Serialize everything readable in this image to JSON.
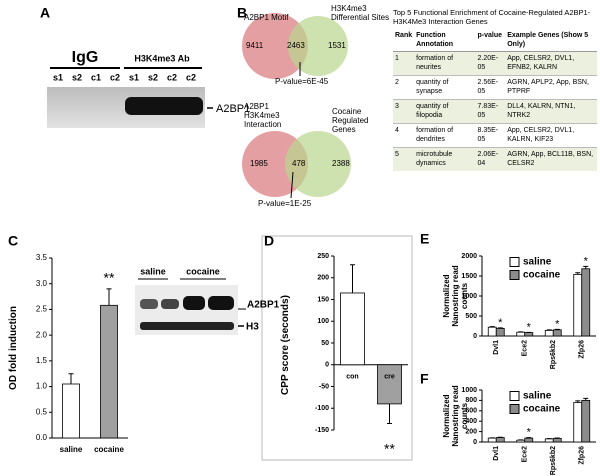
{
  "panel_a": {
    "label": "A",
    "groups": [
      "IgG",
      "H3K4me3 Ab"
    ],
    "lanes": [
      "s1",
      "s2",
      "c1",
      "c2",
      "s1",
      "s2",
      "c2",
      "c2"
    ],
    "band": "A2BP1"
  },
  "panel_b": {
    "label": "B",
    "venn": [
      {
        "left_label": "A2BP1 Motif",
        "right_label": "H3K4me3 Differential Sites",
        "left_only": 9411,
        "overlap": 2463,
        "right_only": 1531,
        "p_value": "P-value=6E-45"
      },
      {
        "left_label": "A2BP1 H3K4me3 Interaction",
        "right_label": "Cocaine Regulated Genes",
        "left_only": 1985,
        "overlap": 478,
        "right_only": 2388,
        "p_value": "P-value=1E-25"
      }
    ],
    "table": {
      "title": "Top 5 Functional Enrichment of Cocaine-Regulated A2BP1-H3K4Me3 Interaction Genes",
      "columns": [
        "Rank",
        "Function Annotation",
        "p-value",
        "Example Genes (Show 5 Only)"
      ],
      "rows": [
        [
          1,
          "formation of neurites",
          "2.20E-05",
          "App, CELSR2, DVL1, EFNB2, KALRN"
        ],
        [
          2,
          "quantity of synapse",
          "2.56E-05",
          "AGRN, APLP2, App, BSN, PTPRF"
        ],
        [
          3,
          "quantity of filopodia",
          "7.83E-05",
          "DLL4, KALRN, NTN1, NTRK2"
        ],
        [
          4,
          "formation of dendrites",
          "8.35E-05",
          "App, CELSR2, DVL1, KALRN, KIF23"
        ],
        [
          5,
          "microtubule dynamics",
          "2.06E-04",
          "AGRN, App, BCL11B, BSN, CELSR2"
        ]
      ]
    }
  },
  "panel_c_blot": {
    "groups": [
      "saline",
      "cocaine"
    ],
    "bands": [
      "A2BP1",
      "H3"
    ]
  },
  "chart_data": [
    {
      "type": "bar",
      "panel": "C",
      "y_label": "OD fold induction",
      "categories": [
        "saline",
        "cocaine"
      ],
      "values": [
        1.05,
        2.58
      ],
      "errors": [
        0.2,
        0.32
      ],
      "colors": [
        "#ffffff",
        "#a0a0a0"
      ],
      "significance": [
        null,
        "**"
      ],
      "ylim": [
        0,
        3.5
      ],
      "yticks": [
        {
          "value": 0,
          "label": "0.0"
        },
        0.5,
        {
          "value": 1,
          "label": "1.0"
        },
        1.5,
        {
          "value": 2,
          "label": "2.0"
        },
        2.5,
        {
          "value": 3,
          "label": "3.0"
        },
        3.5
      ]
    },
    {
      "type": "bar",
      "panel": "D",
      "y_label": "CPP score (seconds)",
      "categories": [
        "con",
        "cre"
      ],
      "values": [
        165,
        -90
      ],
      "errors": [
        65,
        45
      ],
      "colors": [
        "#ffffff",
        "#a0a0a0"
      ],
      "significance": [
        null,
        "**"
      ],
      "ylim": [
        -150,
        250
      ],
      "yticks": [
        -150,
        -100,
        -50,
        0,
        50,
        100,
        150,
        200,
        250
      ]
    },
    {
      "type": "bar",
      "panel": "E",
      "y_label": "Normalized Nanostring read counts",
      "categories": [
        "Dvl1",
        "Ece2",
        "Rps6kb2",
        "Zfp26"
      ],
      "series": [
        {
          "name": "saline",
          "color": "#ffffff",
          "values": [
            220,
            95,
            140,
            1540
          ],
          "errors": [
            15,
            8,
            12,
            40
          ]
        },
        {
          "name": "cocaine",
          "color": "#8c8c8c",
          "values": [
            190,
            85,
            155,
            1680
          ],
          "errors": [
            12,
            6,
            10,
            60
          ]
        }
      ],
      "significance": [
        "*",
        "*",
        "*",
        "*"
      ],
      "ylim": [
        0,
        2000
      ],
      "yticks": [
        0,
        500,
        1000,
        1500,
        2000
      ]
    },
    {
      "type": "bar",
      "panel": "F",
      "y_label": "Normalized Nanostring read counts",
      "categories": [
        "Dvl1",
        "Ece2",
        "Rps6kb2",
        "Zfp26"
      ],
      "series": [
        {
          "name": "saline",
          "color": "#ffffff",
          "values": [
            75,
            35,
            60,
            760
          ],
          "errors": [
            5,
            5,
            5,
            30
          ]
        },
        {
          "name": "cocaine",
          "color": "#8c8c8c",
          "values": [
            85,
            75,
            70,
            800
          ],
          "errors": [
            6,
            8,
            6,
            40
          ]
        }
      ],
      "significance": [
        null,
        "*",
        null,
        null
      ],
      "ylim": [
        0,
        1000
      ],
      "yticks": [
        0,
        200,
        400,
        600,
        800,
        1000
      ]
    }
  ]
}
